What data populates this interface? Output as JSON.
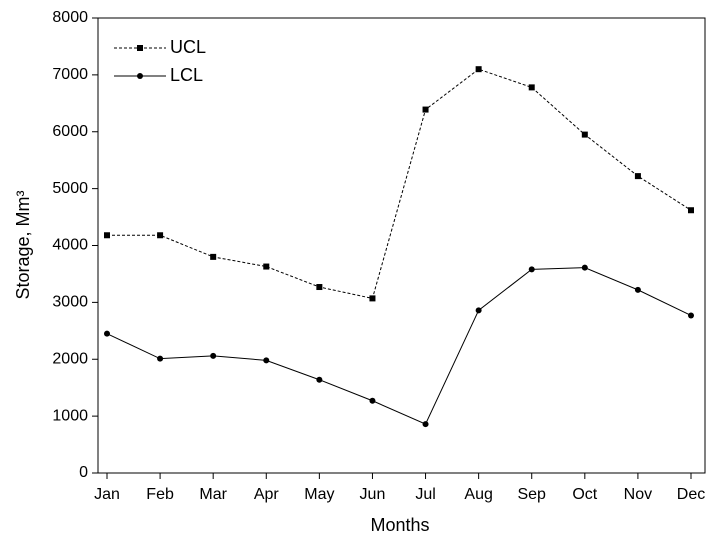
{
  "chart_data": {
    "type": "line",
    "x_label": "Months",
    "y_label": "Storage, Mm³",
    "categories": [
      "Jan",
      "Feb",
      "Mar",
      "Apr",
      "May",
      "Jun",
      "Jul",
      "Aug",
      "Sep",
      "Oct",
      "Nov",
      "Dec"
    ],
    "series": [
      {
        "name": "UCL",
        "color": "#000000",
        "dashed": true,
        "marker": "square",
        "values": [
          4180,
          4180,
          3800,
          3630,
          3270,
          3070,
          6390,
          7100,
          6780,
          5950,
          5220,
          4620
        ]
      },
      {
        "name": "LCL",
        "color": "#000000",
        "dashed": false,
        "marker": "circle",
        "values": [
          2450,
          2010,
          2060,
          1980,
          1640,
          1270,
          860,
          2860,
          3580,
          3610,
          3220,
          2770
        ]
      }
    ],
    "ylim": [
      0,
      8000
    ],
    "yticks": [
      0,
      1000,
      2000,
      3000,
      4000,
      5000,
      6000,
      7000,
      8000
    ],
    "legend": "upper left",
    "grid": false
  }
}
